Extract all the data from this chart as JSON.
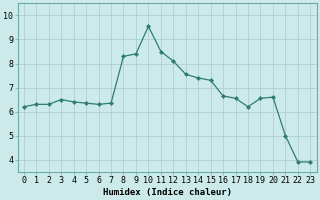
{
  "x": [
    0,
    1,
    2,
    3,
    4,
    5,
    6,
    7,
    8,
    9,
    10,
    11,
    12,
    13,
    14,
    15,
    16,
    17,
    18,
    19,
    20,
    21,
    22,
    23
  ],
  "y": [
    6.2,
    6.3,
    6.3,
    6.5,
    6.4,
    6.35,
    6.3,
    6.35,
    8.3,
    8.4,
    9.55,
    8.5,
    8.1,
    7.55,
    7.4,
    7.3,
    6.65,
    6.55,
    6.2,
    6.55,
    6.6,
    5.0,
    3.9,
    3.9
  ],
  "line_color": "#2e7d6e",
  "marker": "D",
  "marker_size": 2.0,
  "background_color": "#cceaea",
  "grid_color": "#b0cfcf",
  "xlabel": "Humidex (Indice chaleur)",
  "ylim": [
    3.5,
    10.5
  ],
  "xlim": [
    -0.5,
    23.5
  ],
  "yticks": [
    4,
    5,
    6,
    7,
    8,
    9,
    10
  ],
  "xticks": [
    0,
    1,
    2,
    3,
    4,
    5,
    6,
    7,
    8,
    9,
    10,
    11,
    12,
    13,
    14,
    15,
    16,
    17,
    18,
    19,
    20,
    21,
    22,
    23
  ],
  "label_fontsize": 6.5,
  "tick_fontsize": 6.0,
  "linewidth": 0.9
}
